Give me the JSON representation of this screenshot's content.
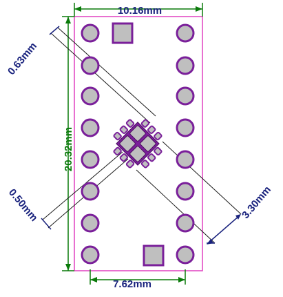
{
  "dimensions": {
    "width_label": "10.16mm",
    "height_label": "20.32mm",
    "row_spacing_label": "7.62mm",
    "pad_pitch_label": "0.63mm",
    "pad_width_label": "0.50mm",
    "package_diagonal_label": "3.30mm"
  },
  "colors": {
    "board_outline": "#e040c0",
    "pad_fill": "#bfbfbf",
    "pad_ring": "#7a1f9a",
    "trace": "#7a1f9a",
    "green_dimension": "#0a7a0a",
    "blue_dimension": "#1a237e"
  }
}
